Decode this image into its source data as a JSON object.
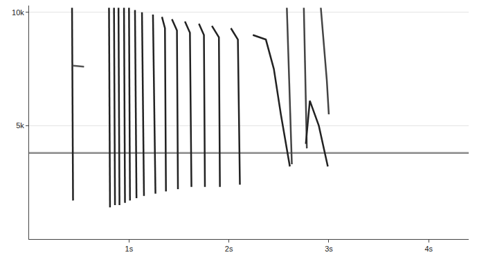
{
  "chart_data": {
    "type": "line",
    "xlim": [
      0,
      4.4
    ],
    "ylim": [
      0,
      10300
    ],
    "xticks": [
      {
        "value": 1,
        "label": "1s"
      },
      {
        "value": 2,
        "label": "2s"
      },
      {
        "value": 3,
        "label": "3s"
      },
      {
        "value": 4,
        "label": "4s"
      }
    ],
    "yticks": [
      {
        "value": 5000,
        "label": "5k"
      },
      {
        "value": 10000,
        "label": "10k"
      }
    ],
    "grid": "y",
    "series": [
      {
        "color": "#8a8a8a",
        "x": [
          0,
          4.4
        ],
        "values": [
          3800,
          3800
        ]
      },
      {
        "color": "#222222",
        "x": [
          0.43,
          0.44
        ],
        "values": [
          10200,
          1700
        ]
      },
      {
        "color": "#555555",
        "x": [
          0.44,
          0.55
        ],
        "values": [
          7650,
          7600
        ]
      },
      {
        "color": "#222222",
        "x": [
          0.8,
          0.81
        ],
        "values": [
          10200,
          1400
        ]
      },
      {
        "color": "#222222",
        "x": [
          0.85,
          0.86
        ],
        "values": [
          10200,
          1500
        ]
      },
      {
        "color": "#222222",
        "x": [
          0.895,
          0.905
        ],
        "values": [
          10200,
          1500
        ]
      },
      {
        "color": "#222222",
        "x": [
          0.95,
          0.96
        ],
        "values": [
          10200,
          1600
        ]
      },
      {
        "color": "#222222",
        "x": [
          1.0,
          1.01
        ],
        "values": [
          10200,
          1700
        ]
      },
      {
        "color": "#222222",
        "x": [
          1.06,
          1.075
        ],
        "values": [
          10100,
          1800
        ]
      },
      {
        "color": "#222222",
        "x": [
          1.13,
          1.15
        ],
        "values": [
          10000,
          1900
        ]
      },
      {
        "color": "#222222",
        "x": [
          1.24,
          1.265
        ],
        "values": [
          9900,
          2000
        ]
      },
      {
        "color": "#222222",
        "x": [
          1.33,
          1.36,
          1.37
        ],
        "values": [
          9800,
          9300,
          2100
        ]
      },
      {
        "color": "#222222",
        "x": [
          1.43,
          1.48,
          1.49
        ],
        "values": [
          9700,
          9200,
          2200
        ]
      },
      {
        "color": "#222222",
        "x": [
          1.56,
          1.61,
          1.625
        ],
        "values": [
          9600,
          9100,
          2300
        ]
      },
      {
        "color": "#222222",
        "x": [
          1.7,
          1.75,
          1.76
        ],
        "values": [
          9500,
          9000,
          2300
        ]
      },
      {
        "color": "#222222",
        "x": [
          1.83,
          1.9,
          1.91
        ],
        "values": [
          9400,
          8900,
          2300
        ]
      },
      {
        "color": "#222222",
        "x": [
          2.02,
          2.09,
          2.11
        ],
        "values": [
          9300,
          8800,
          2400
        ]
      },
      {
        "color": "#222222",
        "x": [
          2.24,
          2.37,
          2.45,
          2.52,
          2.61
        ],
        "values": [
          9000,
          8800,
          7500,
          5500,
          3200
        ]
      },
      {
        "color": "#444444",
        "x": [
          2.58,
          2.63
        ],
        "values": [
          10200,
          3300
        ]
      },
      {
        "color": "#444444",
        "x": [
          2.75,
          2.78
        ],
        "values": [
          10200,
          4000
        ]
      },
      {
        "color": "#222222",
        "x": [
          2.77,
          2.81,
          2.9,
          2.99
        ],
        "values": [
          4200,
          6100,
          5000,
          3200
        ]
      },
      {
        "color": "#444444",
        "x": [
          2.92,
          2.98,
          3.0
        ],
        "values": [
          10200,
          7000,
          5500
        ]
      }
    ]
  }
}
